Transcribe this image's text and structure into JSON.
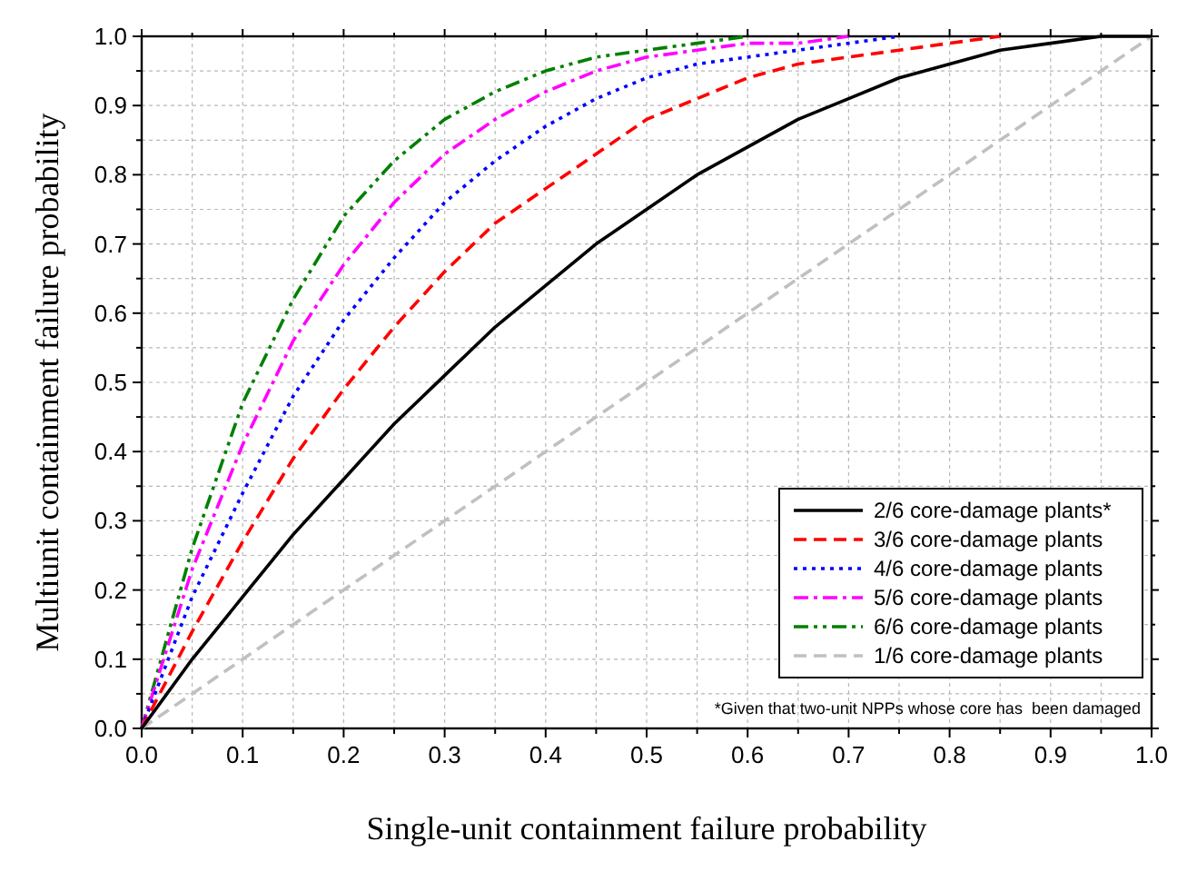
{
  "chart_data": {
    "type": "line",
    "xlabel": "Single-unit containment failure probability",
    "ylabel": "Multiunit containment failure probability",
    "x": [
      0,
      0.05,
      0.1,
      0.15,
      0.2,
      0.25,
      0.3,
      0.35,
      0.4,
      0.45,
      0.5,
      0.55,
      0.6,
      0.65,
      0.7,
      0.75,
      0.8,
      0.85,
      0.9,
      0.95,
      1
    ],
    "series": [
      {
        "name": "2/6 core-damage plants*",
        "color": "#000000",
        "line_style": "solid",
        "values": [
          0,
          0.1,
          0.19,
          0.28,
          0.36,
          0.44,
          0.51,
          0.58,
          0.64,
          0.7,
          0.75,
          0.8,
          0.84,
          0.88,
          0.91,
          0.94,
          0.96,
          0.98,
          0.99,
          1,
          1
        ]
      },
      {
        "name": "3/6 core-damage plants",
        "color": "#ff0000",
        "line_style": "dashed",
        "values": [
          0,
          0.14,
          0.27,
          0.39,
          0.49,
          0.58,
          0.66,
          0.73,
          0.78,
          0.83,
          0.88,
          0.91,
          0.94,
          0.96,
          0.97,
          0.98,
          0.99,
          1,
          null,
          null,
          null
        ]
      },
      {
        "name": "4/6 core-damage plants",
        "color": "#0000ff",
        "line_style": "dotted",
        "values": [
          0,
          0.19,
          0.34,
          0.48,
          0.59,
          0.68,
          0.76,
          0.82,
          0.87,
          0.91,
          0.94,
          0.96,
          0.97,
          0.98,
          0.99,
          1,
          null,
          null,
          null,
          null,
          null
        ]
      },
      {
        "name": "5/6 core-damage plants",
        "color": "#ff00ff",
        "line_style": "dashdot",
        "values": [
          0,
          0.23,
          0.41,
          0.56,
          0.67,
          0.76,
          0.83,
          0.88,
          0.92,
          0.95,
          0.97,
          0.98,
          0.99,
          0.99,
          1,
          null,
          null,
          null,
          null,
          null,
          null
        ]
      },
      {
        "name": "6/6 core-damage plants",
        "color": "#008000",
        "line_style": "dashdotdot",
        "values": [
          0,
          0.26,
          0.47,
          0.62,
          0.74,
          0.82,
          0.88,
          0.92,
          0.95,
          0.97,
          0.98,
          0.99,
          1,
          null,
          null,
          null,
          null,
          null,
          null,
          null,
          null
        ]
      },
      {
        "name": "1/6 core-damage plants",
        "color": "#c0c0c0",
        "line_style": "dashed",
        "x": [
          0,
          1
        ],
        "values": [
          0,
          1
        ]
      }
    ],
    "xlim": [
      0,
      1
    ],
    "ylim": [
      0,
      1
    ],
    "xticks": [
      {
        "value": 0,
        "label": "0.0"
      },
      {
        "value": 0.05,
        "label": null
      },
      0.1,
      {
        "value": 0.15,
        "label": null
      },
      0.2,
      {
        "value": 0.25,
        "label": null
      },
      0.3,
      {
        "value": 0.35,
        "label": null
      },
      0.4,
      {
        "value": 0.45,
        "label": null
      },
      0.5,
      {
        "value": 0.55,
        "label": null
      },
      0.6,
      {
        "value": 0.65,
        "label": null
      },
      0.7,
      {
        "value": 0.75,
        "label": null
      },
      0.8,
      {
        "value": 0.85,
        "label": null
      },
      0.9,
      {
        "value": 0.95,
        "label": null
      },
      {
        "value": 1,
        "label": "1.0"
      }
    ],
    "yticks": [
      {
        "value": 0,
        "label": "0.0"
      },
      {
        "value": 0.05,
        "label": null
      },
      0.1,
      {
        "value": 0.15,
        "label": null
      },
      0.2,
      {
        "value": 0.25,
        "label": null
      },
      0.3,
      {
        "value": 0.35,
        "label": null
      },
      0.4,
      {
        "value": 0.45,
        "label": null
      },
      0.5,
      {
        "value": 0.55,
        "label": null
      },
      0.6,
      {
        "value": 0.65,
        "label": null
      },
      0.7,
      {
        "value": 0.75,
        "label": null
      },
      0.8,
      {
        "value": 0.85,
        "label": null
      },
      0.9,
      {
        "value": 0.95,
        "label": null
      },
      {
        "value": 1,
        "label": "1.0"
      }
    ],
    "grid": true,
    "legend": "bottom right",
    "annotations": [
      "*Given that two-unit NPPs whose core has  been damaged"
    ]
  }
}
